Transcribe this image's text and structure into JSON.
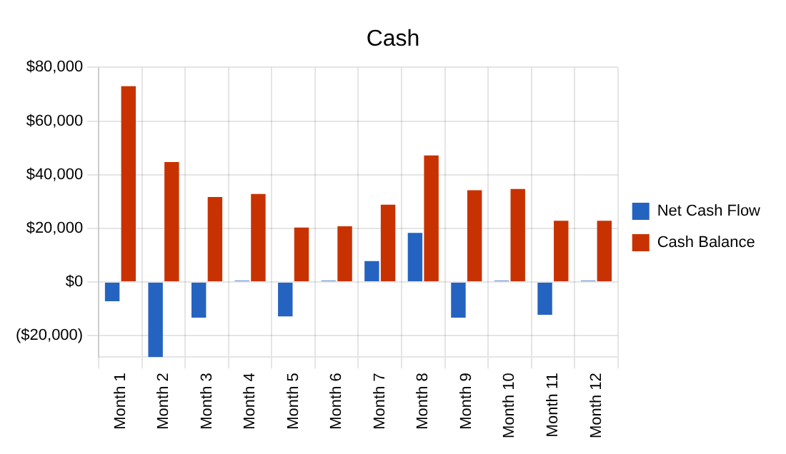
{
  "chart_data": {
    "type": "bar",
    "title": "Cash",
    "categories": [
      "Month 1",
      "Month 2",
      "Month 3",
      "Month 4",
      "Month 5",
      "Month 6",
      "Month 7",
      "Month 8",
      "Month 9",
      "Month 10",
      "Month 11",
      "Month 12"
    ],
    "series": [
      {
        "name": "Net Cash Flow",
        "color": "#2563c0",
        "values": [
          -7200,
          -28000,
          -13300,
          500,
          -12800,
          500,
          7800,
          18300,
          -13300,
          500,
          -12200,
          500
        ]
      },
      {
        "name": "Cash Balance",
        "color": "#c83200",
        "values": [
          73000,
          44700,
          31700,
          32800,
          20300,
          20800,
          28800,
          47200,
          34200,
          34700,
          22800,
          22800
        ]
      }
    ],
    "ylim": [
      -28000,
      80000
    ],
    "yticks": [
      {
        "value": -20000,
        "label": "($20,000)"
      },
      {
        "value": 0,
        "label": "$0"
      },
      {
        "value": 20000,
        "label": "$20,000"
      },
      {
        "value": 40000,
        "label": "$40,000"
      },
      {
        "value": 60000,
        "label": "$60,000"
      },
      {
        "value": 80000,
        "label": "$80,000"
      }
    ],
    "grid": true,
    "legend": "right"
  }
}
